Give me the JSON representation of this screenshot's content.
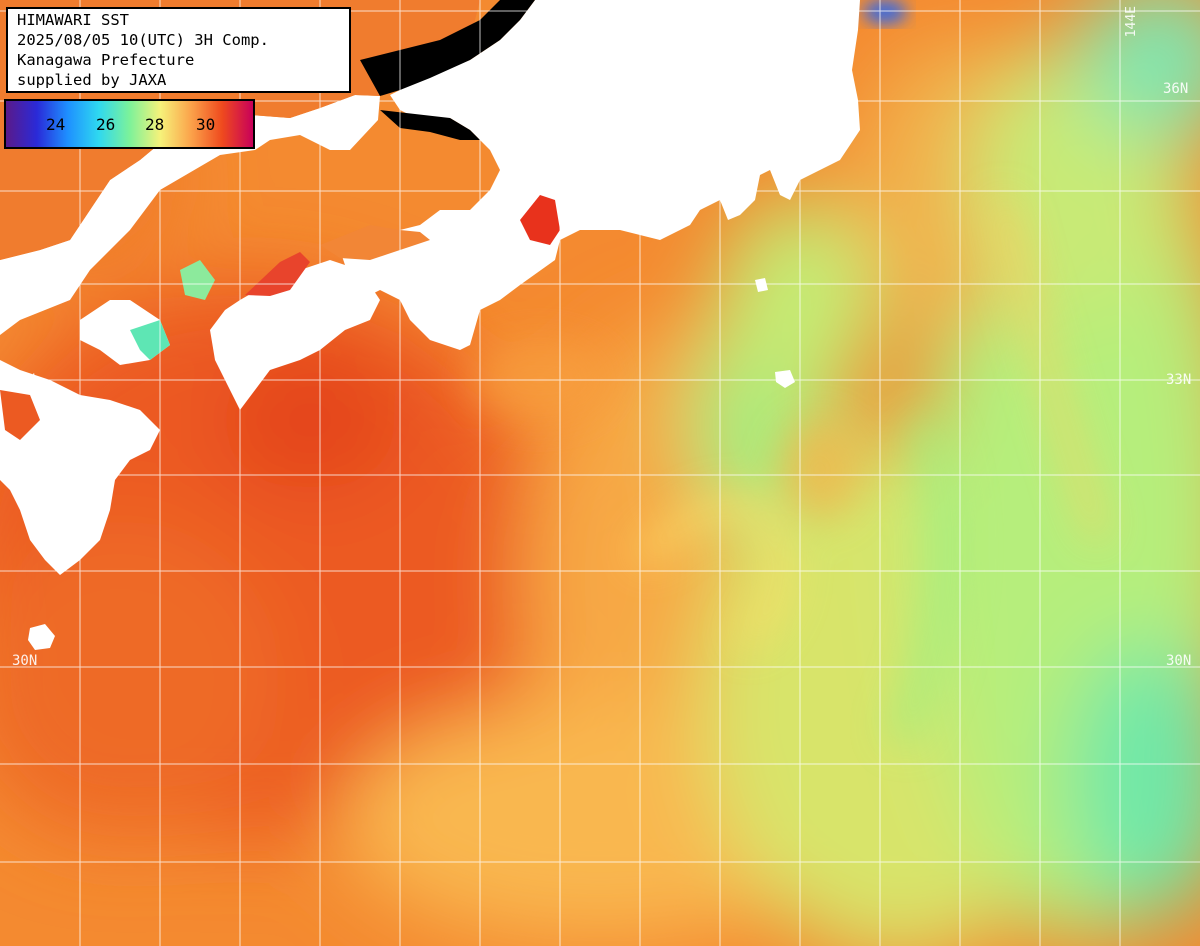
{
  "header": {
    "title": "HIMAWARI SST",
    "datetime": "2025/08/05 10(UTC) 3H Comp.",
    "region": "Kanagawa Prefecture",
    "credit": "supplied by JAXA"
  },
  "legend": {
    "ticks": [
      "24",
      "26",
      "28",
      "30"
    ],
    "colors": [
      "#5a1a8a",
      "#2a2ad8",
      "#1e90ff",
      "#2fd8f0",
      "#7cf29a",
      "#f6f27a",
      "#fba24a",
      "#ef4a1e",
      "#c8005a"
    ]
  },
  "grid_labels": {
    "lat_36n": "36N",
    "lat_33n": "33N",
    "lat_30n": "30N",
    "lon_144e": "144E"
  },
  "colors": {
    "warm_sea": "#f5862f",
    "hot_sea": "#ea4b1c",
    "mid_sea": "#fbb04a",
    "cool_sea": "#a8ee7c",
    "cold_sea": "#5fe8b0",
    "land": "#ffffff",
    "grid": "#ffffff"
  }
}
